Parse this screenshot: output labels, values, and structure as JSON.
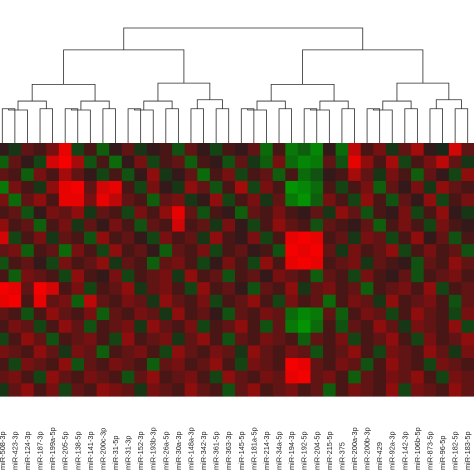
{
  "chart_data": {
    "type": "heatmap",
    "title": "",
    "xlabel": "",
    "ylabel": "",
    "colors": {
      "up": "#ff0000",
      "down": "#00a000",
      "neutral": "#1c1c1c",
      "background": "#ffffff",
      "dendrogram": "#2b2b2b"
    },
    "value_range": [
      -1,
      1
    ],
    "has_column_dendrogram": true,
    "columns": [
      "miR-508-3p",
      "miR-423-3p",
      "miR-124-3p",
      "miR-187-3p",
      "miR-199a-5p",
      "miR-205-5p",
      "miR-138-5p",
      "miR-141-3p",
      "miR-200c-3p",
      "miR-31-5p",
      "miR-31-3p",
      "miR-152-3p",
      "miR-193b-3p",
      "miR-26a-5p",
      "miR-30a-3p",
      "miR-148a-3p",
      "miR-342-3p",
      "miR-361-5p",
      "miR-363-3p",
      "miR-145-5p",
      "miR-181a-5p",
      "miR-214-3p",
      "miR-34a-5p",
      "miR-194-3p",
      "miR-192-5p",
      "miR-204-5p",
      "miR-215-5p",
      "miR-375",
      "miR-200a-3p",
      "miR-200b-3p",
      "miR-429",
      "miR-92a-3p",
      "miR-142-3p",
      "miR-106b-5p",
      "miR-873-5p",
      "miR-96-5p",
      "miR-182-5p",
      "miR-183-5p"
    ],
    "rows": 20,
    "matrix": [
      [
        0.1,
        -0.2,
        0.3,
        0.2,
        0.4,
        0.9,
        -0.3,
        0.2,
        -0.5,
        0.1,
        0.3,
        -0.2,
        0.1,
        0.2,
        -0.4,
        0.3,
        0.1,
        -0.3,
        0.2,
        0.1,
        0.3,
        -0.6,
        0.2,
        -0.7,
        -0.5,
        -0.8,
        0.1,
        -0.6,
        0.7,
        0.2,
        0.4,
        -0.2,
        0.3,
        0.6,
        0.1,
        -0.1,
        0.8,
        0.3
      ],
      [
        -0.5,
        0.3,
        0.1,
        -0.3,
        0.8,
        0.95,
        0.6,
        -0.4,
        0.2,
        -0.6,
        0.1,
        0.4,
        -0.3,
        0.2,
        0.3,
        -0.5,
        0.2,
        0.1,
        -0.4,
        0.3,
        -0.2,
        -0.5,
        0.4,
        -0.6,
        -0.8,
        -0.7,
        0.3,
        -0.4,
        0.9,
        0.5,
        0.2,
        0.6,
        -0.3,
        0.2,
        0.4,
        0.7,
        0.3,
        -0.2
      ],
      [
        0.3,
        0.2,
        -0.5,
        0.4,
        0.2,
        0.6,
        0.3,
        0.1,
        -0.3,
        0.2,
        -0.4,
        0.1,
        0.5,
        -0.2,
        0.1,
        0.3,
        -0.6,
        0.2,
        0.4,
        -0.3,
        0.2,
        0.3,
        -0.5,
        0.2,
        -0.6,
        -0.4,
        0.1,
        0.2,
        0.6,
        0.3,
        -0.2,
        0.4,
        0.2,
        -0.5,
        0.3,
        0.1,
        -0.3,
        0.5
      ],
      [
        -0.7,
        0.4,
        0.2,
        -0.2,
        0.5,
        0.9,
        0.95,
        0.3,
        0.8,
        0.9,
        0.2,
        -0.3,
        0.4,
        0.1,
        -0.2,
        0.5,
        0.3,
        -0.4,
        0.2,
        0.6,
        -0.3,
        0.4,
        0.2,
        -0.9,
        -0.8,
        -0.6,
        0.2,
        -0.3,
        0.2,
        0.4,
        -0.5,
        0.3,
        0.1,
        0.4,
        -0.2,
        0.5,
        0.3,
        0.2
      ],
      [
        0.4,
        -0.6,
        0.3,
        0.5,
        0.2,
        0.9,
        0.9,
        0.4,
        0.9,
        0.7,
        0.3,
        0.2,
        -0.5,
        0.3,
        0.4,
        -0.2,
        0.1,
        0.5,
        -0.3,
        0.2,
        0.4,
        -0.2,
        0.3,
        -0.7,
        -0.9,
        -0.5,
        0.4,
        0.2,
        -0.3,
        0.5,
        0.2,
        -0.4,
        0.3,
        0.1,
        0.5,
        -0.3,
        0.2,
        0.4
      ],
      [
        0.2,
        0.3,
        -0.4,
        0.1,
        0.4,
        0.3,
        0.5,
        -0.2,
        0.3,
        0.2,
        -0.3,
        0.4,
        0.2,
        0.5,
        0.9,
        0.3,
        -0.4,
        0.2,
        0.1,
        -0.5,
        0.3,
        0.2,
        0.4,
        0.2,
        0.1,
        0.3,
        -0.2,
        0.5,
        0.3,
        -0.4,
        0.2,
        0.1,
        0.4,
        -0.3,
        0.2,
        0.5,
        0.1,
        -0.2
      ],
      [
        0.5,
        0.2,
        0.3,
        -0.5,
        0.2,
        0.4,
        -0.2,
        0.3,
        0.1,
        0.4,
        0.2,
        -0.4,
        0.3,
        0.2,
        0.8,
        0.2,
        0.3,
        -0.2,
        0.4,
        0.1,
        -0.3,
        0.2,
        0.5,
        0.3,
        0.2,
        -0.4,
        0.3,
        0.2,
        0.1,
        0.3,
        -0.5,
        0.2,
        0.4,
        0.2,
        -0.3,
        0.4,
        0.2,
        0.1
      ],
      [
        0.8,
        -0.3,
        0.2,
        0.4,
        -0.2,
        0.3,
        0.2,
        -0.4,
        0.5,
        0.2,
        0.3,
        0.1,
        -0.3,
        0.4,
        0.2,
        0.3,
        -0.2,
        0.5,
        0.2,
        0.1,
        0.4,
        -0.3,
        0.2,
        0.9,
        0.95,
        0.9,
        0.2,
        0.3,
        -0.2,
        0.4,
        0.3,
        -0.3,
        0.2,
        0.5,
        0.1,
        0.3,
        -0.4,
        0.2
      ],
      [
        0.3,
        0.4,
        -0.5,
        0.2,
        0.3,
        -0.6,
        0.4,
        0.2,
        -0.3,
        0.5,
        0.2,
        0.3,
        0.1,
        -0.5,
        0.3,
        0.2,
        0.4,
        -0.3,
        0.2,
        0.3,
        0.1,
        0.2,
        -0.4,
        0.95,
        0.9,
        0.95,
        0.3,
        -0.2,
        0.4,
        0.2,
        0.3,
        0.5,
        -0.3,
        0.2,
        0.4,
        0.2,
        0.3,
        -0.4
      ],
      [
        -0.4,
        0.2,
        0.3,
        0.1,
        -0.3,
        0.4,
        0.2,
        0.3,
        0.5,
        -0.2,
        0.3,
        0.2,
        -0.5,
        0.3,
        0.4,
        0.2,
        -0.3,
        0.1,
        0.4,
        0.2,
        -0.3,
        0.5,
        0.2,
        0.9,
        0.95,
        0.9,
        0.2,
        0.3,
        0.4,
        -0.2,
        0.3,
        0.2,
        0.1,
        -0.4,
        0.3,
        0.2,
        0.5,
        0.3
      ],
      [
        0.2,
        -0.5,
        0.4,
        0.3,
        0.2,
        -0.3,
        0.5,
        0.2,
        0.1,
        0.4,
        -0.3,
        0.2,
        0.3,
        0.4,
        -0.2,
        0.5,
        0.2,
        0.3,
        -0.4,
        0.2,
        0.3,
        0.1,
        0.4,
        0.3,
        0.2,
        -0.5,
        0.3,
        0.2,
        -0.3,
        0.4,
        0.2,
        0.1,
        0.3,
        -0.4,
        0.2,
        0.3,
        0.4,
        0.2
      ],
      [
        0.95,
        0.9,
        0.3,
        0.95,
        0.8,
        0.2,
        0.4,
        -0.3,
        0.2,
        0.3,
        0.5,
        -0.2,
        0.3,
        0.4,
        0.2,
        -0.3,
        0.5,
        0.2,
        0.3,
        0.1,
        -0.4,
        0.3,
        0.2,
        0.5,
        -0.2,
        0.3,
        0.4,
        0.2,
        0.3,
        -0.5,
        0.2,
        0.3,
        0.4,
        0.2,
        0.5,
        -0.3,
        0.2,
        0.3
      ],
      [
        0.9,
        0.95,
        0.2,
        0.9,
        0.3,
        0.4,
        -0.5,
        0.7,
        0.3,
        0.2,
        0.4,
        0.3,
        -0.2,
        0.5,
        0.3,
        0.2,
        0.4,
        -0.3,
        0.2,
        0.3,
        0.5,
        0.2,
        -0.3,
        0.4,
        0.2,
        0.3,
        -0.6,
        0.2,
        0.4,
        0.3,
        -0.2,
        0.5,
        0.2,
        0.3,
        0.4,
        0.2,
        -0.4,
        0.3
      ],
      [
        0.3,
        0.2,
        -0.4,
        0.2,
        0.5,
        0.3,
        0.2,
        0.4,
        -0.5,
        0.3,
        0.2,
        0.4,
        0.3,
        -0.2,
        0.5,
        0.2,
        0.3,
        0.1,
        -0.4,
        0.3,
        0.2,
        0.4,
        0.3,
        -0.6,
        -0.8,
        -0.7,
        0.3,
        -0.5,
        0.2,
        0.4,
        0.3,
        -0.3,
        0.2,
        0.5,
        0.3,
        0.2,
        -0.3,
        0.4
      ],
      [
        0.2,
        0.4,
        0.3,
        -0.3,
        0.2,
        0.5,
        0.3,
        -0.4,
        0.2,
        0.3,
        0.4,
        -0.2,
        0.5,
        0.3,
        0.2,
        0.4,
        -0.3,
        0.2,
        0.3,
        0.5,
        0.2,
        -0.4,
        0.3,
        -0.7,
        -0.9,
        -0.6,
        0.2,
        -0.4,
        0.3,
        0.2,
        0.5,
        0.3,
        -0.2,
        0.4,
        0.3,
        0.2,
        0.5,
        -0.3
      ],
      [
        -0.3,
        0.2,
        0.5,
        0.3,
        -0.4,
        0.2,
        0.3,
        0.4,
        0.2,
        -0.3,
        0.5,
        0.2,
        0.3,
        0.4,
        -0.2,
        0.3,
        0.5,
        0.2,
        -0.4,
        0.3,
        0.2,
        0.4,
        0.3,
        0.2,
        -0.5,
        0.3,
        0.2,
        0.4,
        -0.3,
        0.2,
        0.3,
        0.5,
        0.2,
        -0.3,
        0.4,
        0.2,
        0.3,
        0.5
      ],
      [
        0.4,
        0.3,
        0.2,
        0.5,
        0.3,
        -0.2,
        0.4,
        0.3,
        -0.5,
        0.2,
        0.3,
        0.4,
        0.2,
        -0.3,
        0.5,
        0.3,
        0.2,
        0.4,
        0.3,
        -0.2,
        0.5,
        0.3,
        0.2,
        0.4,
        0.3,
        -0.4,
        0.2,
        0.3,
        0.5,
        0.2,
        -0.3,
        0.4,
        0.3,
        0.2,
        0.5,
        0.3,
        -0.2,
        0.4
      ],
      [
        0.2,
        -0.3,
        0.4,
        0.3,
        0.2,
        0.5,
        -0.4,
        0.3,
        0.2,
        0.4,
        0.3,
        0.2,
        -0.5,
        0.3,
        0.4,
        0.2,
        0.3,
        0.5,
        0.2,
        -0.3,
        0.4,
        0.3,
        0.2,
        0.95,
        0.9,
        0.3,
        0.2,
        0.4,
        0.3,
        -0.4,
        0.2,
        0.5,
        0.3,
        0.2,
        -0.3,
        0.4,
        0.3,
        0.2
      ],
      [
        0.3,
        0.4,
        0.2,
        -0.3,
        0.5,
        0.3,
        0.2,
        0.4,
        0.3,
        0.2,
        -0.4,
        0.3,
        0.5,
        0.2,
        0.3,
        0.4,
        0.2,
        -0.3,
        0.5,
        0.3,
        0.2,
        0.4,
        0.3,
        0.9,
        0.95,
        0.3,
        0.4,
        0.2,
        -0.5,
        0.3,
        0.2,
        0.4,
        0.3,
        0.5,
        0.2,
        -0.3,
        0.4,
        0.3
      ],
      [
        -0.2,
        0.3,
        0.5,
        0.2,
        0.4,
        -0.3,
        0.3,
        0.2,
        0.5,
        0.4,
        0.3,
        -0.2,
        0.4,
        0.3,
        0.2,
        0.5,
        0.3,
        0.2,
        -0.4,
        0.3,
        0.5,
        0.2,
        0.3,
        0.4,
        0.2,
        0.3,
        -0.5,
        0.2,
        0.4,
        0.3,
        0.2,
        0.5,
        -0.3,
        0.4,
        0.3,
        0.2,
        0.5,
        0.3
      ]
    ]
  }
}
